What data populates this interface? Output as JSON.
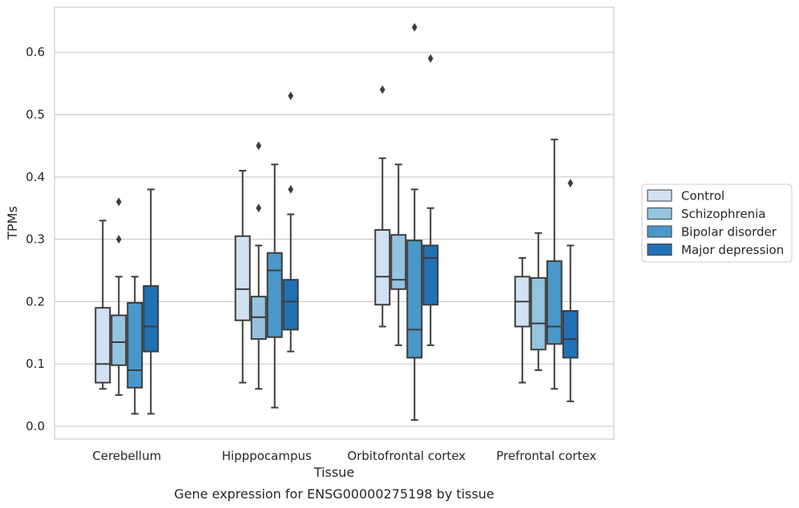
{
  "chart_data": {
    "type": "box",
    "xlabel": "Tissue",
    "ylabel": "TPMs",
    "caption": "Gene expression for ENSG00000275198 by tissue",
    "ylim": [
      -0.02,
      0.675
    ],
    "yticks": [
      0.0,
      0.1,
      0.2,
      0.3,
      0.4,
      0.5,
      0.6
    ],
    "ytick_labels": [
      "0.0",
      "0.1",
      "0.2",
      "0.3",
      "0.4",
      "0.5",
      "0.6"
    ],
    "grid": "horizontal",
    "legend_position": "right",
    "categories": [
      "Cerebellum",
      "Hipppocampus",
      "Orbitofrontal cortex",
      "Prefrontal cortex"
    ],
    "series": [
      {
        "name": "Control",
        "color": "#d0e1f2",
        "boxes": [
          {
            "whislo": 0.06,
            "q1": 0.07,
            "med": 0.1,
            "q3": 0.19,
            "whishi": 0.33,
            "fliers": []
          },
          {
            "whislo": 0.07,
            "q1": 0.17,
            "med": 0.22,
            "q3": 0.305,
            "whishi": 0.41,
            "fliers": []
          },
          {
            "whislo": 0.16,
            "q1": 0.195,
            "med": 0.24,
            "q3": 0.315,
            "whishi": 0.43,
            "fliers": [
              0.54
            ]
          },
          {
            "whislo": 0.07,
            "q1": 0.16,
            "med": 0.2,
            "q3": 0.24,
            "whishi": 0.27,
            "fliers": []
          }
        ]
      },
      {
        "name": "Schizophrenia",
        "color": "#94c4df",
        "boxes": [
          {
            "whislo": 0.05,
            "q1": 0.098,
            "med": 0.135,
            "q3": 0.178,
            "whishi": 0.24,
            "fliers": [
              0.3,
              0.36
            ]
          },
          {
            "whislo": 0.06,
            "q1": 0.14,
            "med": 0.175,
            "q3": 0.208,
            "whishi": 0.29,
            "fliers": [
              0.35,
              0.45
            ]
          },
          {
            "whislo": 0.13,
            "q1": 0.22,
            "med": 0.235,
            "q3": 0.307,
            "whishi": 0.42,
            "fliers": []
          },
          {
            "whislo": 0.09,
            "q1": 0.123,
            "med": 0.165,
            "q3": 0.238,
            "whishi": 0.31,
            "fliers": []
          }
        ]
      },
      {
        "name": "Bipolar disorder",
        "color": "#4a98c9",
        "boxes": [
          {
            "whislo": 0.02,
            "q1": 0.062,
            "med": 0.09,
            "q3": 0.198,
            "whishi": 0.24,
            "fliers": []
          },
          {
            "whislo": 0.03,
            "q1": 0.143,
            "med": 0.25,
            "q3": 0.278,
            "whishi": 0.42,
            "fliers": []
          },
          {
            "whislo": 0.01,
            "q1": 0.11,
            "med": 0.155,
            "q3": 0.298,
            "whishi": 0.38,
            "fliers": [
              0.64
            ]
          },
          {
            "whislo": 0.06,
            "q1": 0.132,
            "med": 0.16,
            "q3": 0.265,
            "whishi": 0.46,
            "fliers": []
          }
        ]
      },
      {
        "name": "Major depression",
        "color": "#2171b5",
        "boxes": [
          {
            "whislo": 0.02,
            "q1": 0.12,
            "med": 0.16,
            "q3": 0.225,
            "whishi": 0.38,
            "fliers": []
          },
          {
            "whislo": 0.12,
            "q1": 0.155,
            "med": 0.2,
            "q3": 0.235,
            "whishi": 0.34,
            "fliers": [
              0.38,
              0.53
            ]
          },
          {
            "whislo": 0.13,
            "q1": 0.195,
            "med": 0.27,
            "q3": 0.29,
            "whishi": 0.35,
            "fliers": [
              0.59
            ]
          },
          {
            "whislo": 0.04,
            "q1": 0.11,
            "med": 0.14,
            "q3": 0.185,
            "whishi": 0.29,
            "fliers": [
              0.39
            ]
          }
        ]
      }
    ]
  }
}
